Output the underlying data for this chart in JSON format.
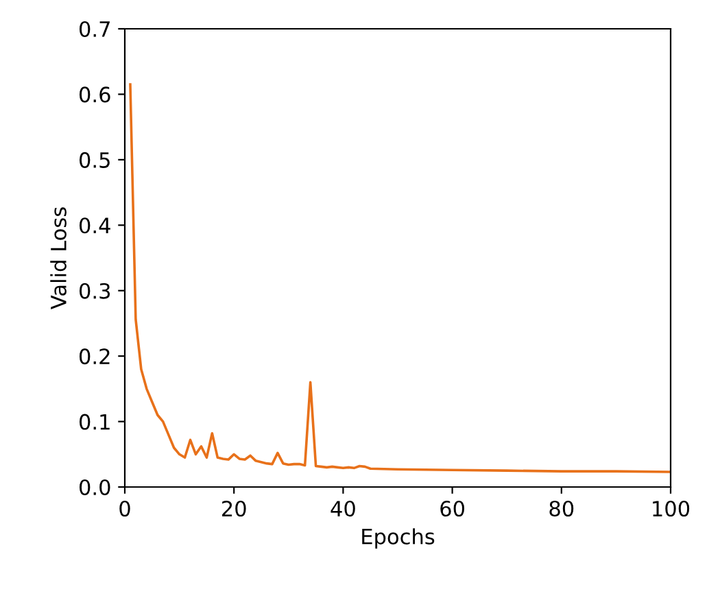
{
  "chart_data": {
    "type": "line",
    "xlabel": "Epochs",
    "ylabel": "Valid Loss",
    "x": [
      1,
      2,
      3,
      4,
      5,
      6,
      7,
      8,
      9,
      10,
      11,
      12,
      13,
      14,
      15,
      16,
      17,
      18,
      19,
      20,
      21,
      22,
      23,
      24,
      25,
      26,
      27,
      28,
      29,
      30,
      31,
      32,
      33,
      34,
      35,
      36,
      37,
      38,
      39,
      40,
      41,
      42,
      43,
      44,
      45,
      50,
      60,
      70,
      80,
      90,
      100
    ],
    "series": [
      {
        "color": "#e8711a",
        "values": [
          0.615,
          0.256,
          0.18,
          0.15,
          0.13,
          0.11,
          0.1,
          0.08,
          0.06,
          0.05,
          0.045,
          0.072,
          0.05,
          0.062,
          0.045,
          0.082,
          0.045,
          0.043,
          0.042,
          0.05,
          0.043,
          0.042,
          0.048,
          0.04,
          0.038,
          0.036,
          0.035,
          0.052,
          0.036,
          0.034,
          0.035,
          0.035,
          0.033,
          0.16,
          0.032,
          0.031,
          0.03,
          0.031,
          0.03,
          0.029,
          0.03,
          0.029,
          0.032,
          0.031,
          0.028,
          0.027,
          0.026,
          0.025,
          0.024,
          0.024,
          0.023
        ]
      }
    ],
    "xlim": [
      0,
      100
    ],
    "xticks": [
      0,
      20,
      40,
      60,
      80,
      100
    ],
    "ylim": [
      0,
      0.7
    ],
    "yticks": [
      {
        "value": 0,
        "label": "0.0"
      },
      0.1,
      0.2,
      0.3,
      0.4,
      0.5,
      0.6,
      0.7
    ],
    "grid": false,
    "legend": false
  }
}
